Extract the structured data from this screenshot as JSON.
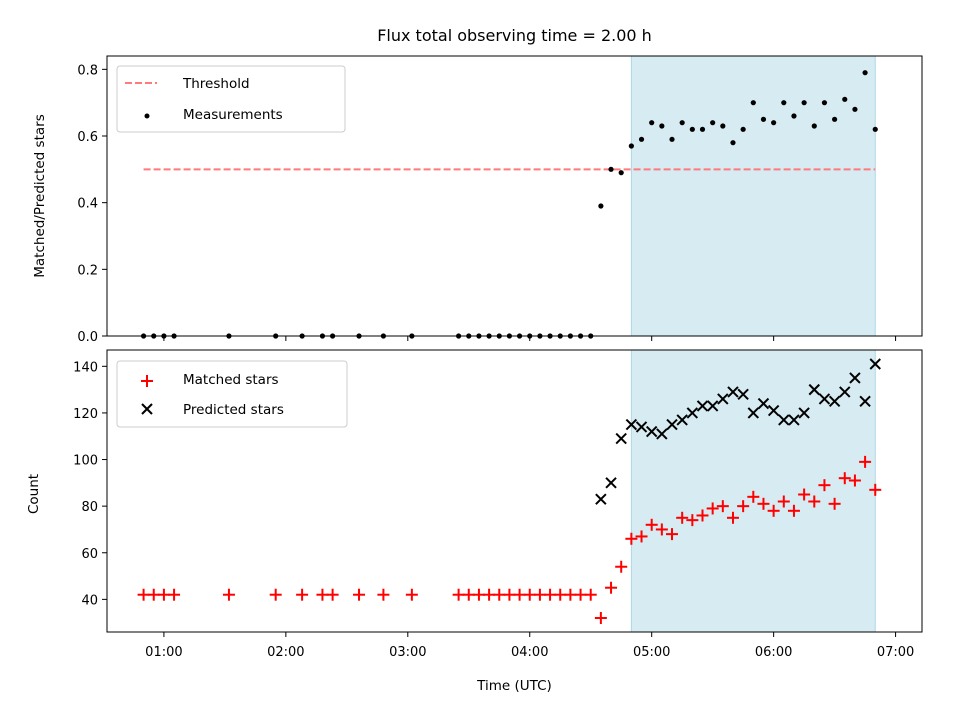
{
  "chart_data": [
    {
      "type": "scatter",
      "title": "Flux total observing time = 2.00 h",
      "xlabel": "",
      "ylabel": "Matched/Predicted stars",
      "xlim": [
        "00:32",
        "07:13"
      ],
      "ylim": [
        0,
        0.84
      ],
      "yticks": [
        0.0,
        0.2,
        0.4,
        0.6,
        0.8
      ],
      "ytick_labels": [
        "0.0",
        "0.2",
        "0.4",
        "0.6",
        "0.8"
      ],
      "grid": false,
      "legend_position": "upper left",
      "shaded_region": {
        "x": [
          "04:50",
          "06:50"
        ],
        "color": "#add8e6"
      },
      "threshold": {
        "name": "Threshold",
        "value": 0.5,
        "x": [
          "00:50",
          "06:50"
        ],
        "color": "#ff7a7a",
        "style": "dashed"
      },
      "series": [
        {
          "name": "Measurements",
          "marker": "dot",
          "color": "#000000",
          "x": [
            "00:50",
            "00:55",
            "01:00",
            "01:05",
            "01:32",
            "01:55",
            "02:08",
            "02:18",
            "02:23",
            "02:36",
            "02:48",
            "03:02",
            "03:25",
            "03:30",
            "03:35",
            "03:40",
            "03:45",
            "03:50",
            "03:55",
            "04:00",
            "04:05",
            "04:10",
            "04:15",
            "04:20",
            "04:25",
            "04:30",
            "04:35",
            "04:40",
            "04:45",
            "04:50",
            "04:55",
            "05:00",
            "05:05",
            "05:10",
            "05:15",
            "05:20",
            "05:25",
            "05:30",
            "05:35",
            "05:40",
            "05:45",
            "05:50",
            "05:55",
            "06:00",
            "06:05",
            "06:10",
            "06:15",
            "06:20",
            "06:25",
            "06:30",
            "06:35",
            "06:40",
            "06:45",
            "06:50"
          ],
          "y": [
            0,
            0,
            0,
            0,
            0,
            0,
            0,
            0,
            0,
            0,
            0,
            0,
            0,
            0,
            0,
            0,
            0,
            0,
            0,
            0,
            0,
            0,
            0,
            0,
            0,
            0,
            0.39,
            0.5,
            0.49,
            0.57,
            0.59,
            0.64,
            0.63,
            0.59,
            0.64,
            0.62,
            0.62,
            0.64,
            0.63,
            0.58,
            0.62,
            0.7,
            0.65,
            0.64,
            0.7,
            0.66,
            0.7,
            0.63,
            0.7,
            0.65,
            0.71,
            0.68,
            0.79,
            0.62
          ]
        }
      ]
    },
    {
      "type": "scatter",
      "title": "",
      "xlabel": "Time (UTC)",
      "ylabel": "Count",
      "xlim": [
        "00:32",
        "07:13"
      ],
      "ylim": [
        26,
        147
      ],
      "yticks": [
        40,
        60,
        80,
        100,
        120,
        140
      ],
      "ytick_labels": [
        "40",
        "60",
        "80",
        "100",
        "120",
        "140"
      ],
      "xticks": [
        "01:00",
        "02:00",
        "03:00",
        "04:00",
        "05:00",
        "06:00",
        "07:00"
      ],
      "grid": false,
      "legend_position": "upper left",
      "shaded_region": {
        "x": [
          "04:50",
          "06:50"
        ],
        "color": "#add8e6"
      },
      "series": [
        {
          "name": "Matched stars",
          "marker": "+",
          "color": "#ff0000",
          "x": [
            "00:50",
            "00:55",
            "01:00",
            "01:05",
            "01:32",
            "01:55",
            "02:08",
            "02:18",
            "02:23",
            "02:36",
            "02:48",
            "03:02",
            "03:25",
            "03:30",
            "03:35",
            "03:40",
            "03:45",
            "03:50",
            "03:55",
            "04:00",
            "04:05",
            "04:10",
            "04:15",
            "04:20",
            "04:25",
            "04:30",
            "04:35",
            "04:40",
            "04:45",
            "04:50",
            "04:55",
            "05:00",
            "05:05",
            "05:10",
            "05:15",
            "05:20",
            "05:25",
            "05:30",
            "05:35",
            "05:40",
            "05:45",
            "05:50",
            "05:55",
            "06:00",
            "06:05",
            "06:10",
            "06:15",
            "06:20",
            "06:25",
            "06:30",
            "06:35",
            "06:40",
            "06:45",
            "06:50"
          ],
          "y": [
            42,
            42,
            42,
            42,
            42,
            42,
            42,
            42,
            42,
            42,
            42,
            42,
            42,
            42,
            42,
            42,
            42,
            42,
            42,
            42,
            42,
            42,
            42,
            42,
            42,
            42,
            32,
            45,
            54,
            66,
            67,
            72,
            70,
            68,
            75,
            74,
            76,
            79,
            80,
            75,
            80,
            84,
            81,
            78,
            82,
            78,
            85,
            82,
            89,
            81,
            92,
            91,
            99,
            87
          ]
        },
        {
          "name": "Predicted stars",
          "marker": "x",
          "color": "#000000",
          "x": [
            "04:35",
            "04:40",
            "04:45",
            "04:50",
            "04:55",
            "05:00",
            "05:05",
            "05:10",
            "05:15",
            "05:20",
            "05:25",
            "05:30",
            "05:35",
            "05:40",
            "05:45",
            "05:50",
            "05:55",
            "06:00",
            "06:05",
            "06:10",
            "06:15",
            "06:20",
            "06:25",
            "06:30",
            "06:35",
            "06:40",
            "06:45",
            "06:50"
          ],
          "y": [
            83,
            90,
            109,
            115,
            114,
            112,
            111,
            115,
            117,
            120,
            123,
            123,
            126,
            129,
            128,
            120,
            124,
            121,
            117,
            117,
            120,
            130,
            126,
            125,
            129,
            135,
            125,
            141
          ]
        }
      ]
    }
  ]
}
